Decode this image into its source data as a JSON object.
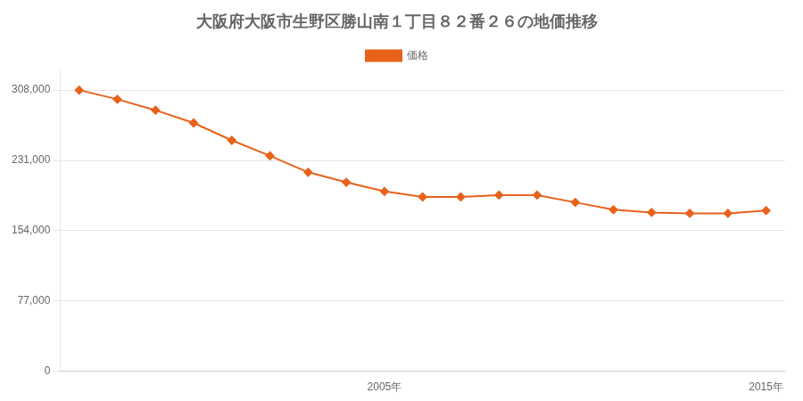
{
  "chart_data": {
    "type": "line",
    "title": "大阪府大阪市生野区勝山南１丁目８２番２６の地価推移",
    "x": [
      1997,
      1998,
      1999,
      2000,
      2001,
      2002,
      2003,
      2004,
      2005,
      2006,
      2007,
      2008,
      2009,
      2010,
      2011,
      2012,
      2013,
      2014,
      2015
    ],
    "series": [
      {
        "name": "価格",
        "color": "#E8621A",
        "marker": "diamond",
        "values": [
          308000,
          298000,
          286000,
          272000,
          253000,
          236000,
          218000,
          207000,
          197000,
          191000,
          191000,
          193000,
          193000,
          185000,
          177000,
          174000,
          173000,
          173000,
          176000
        ]
      }
    ],
    "xlim": [
      1996.5,
      2015.5
    ],
    "xticks": [
      {
        "value": 2005,
        "label": "2005年"
      },
      {
        "value": 2015,
        "label": "2015年"
      }
    ],
    "ylim": [
      0,
      330000
    ],
    "yticks": [
      0,
      {
        "value": 77000,
        "label": "77,000"
      },
      {
        "value": 154000,
        "label": "154,000"
      },
      {
        "value": 231000,
        "label": "231,000"
      },
      {
        "value": 308000,
        "label": "308,000"
      }
    ],
    "grid": "y",
    "legend": "top"
  }
}
